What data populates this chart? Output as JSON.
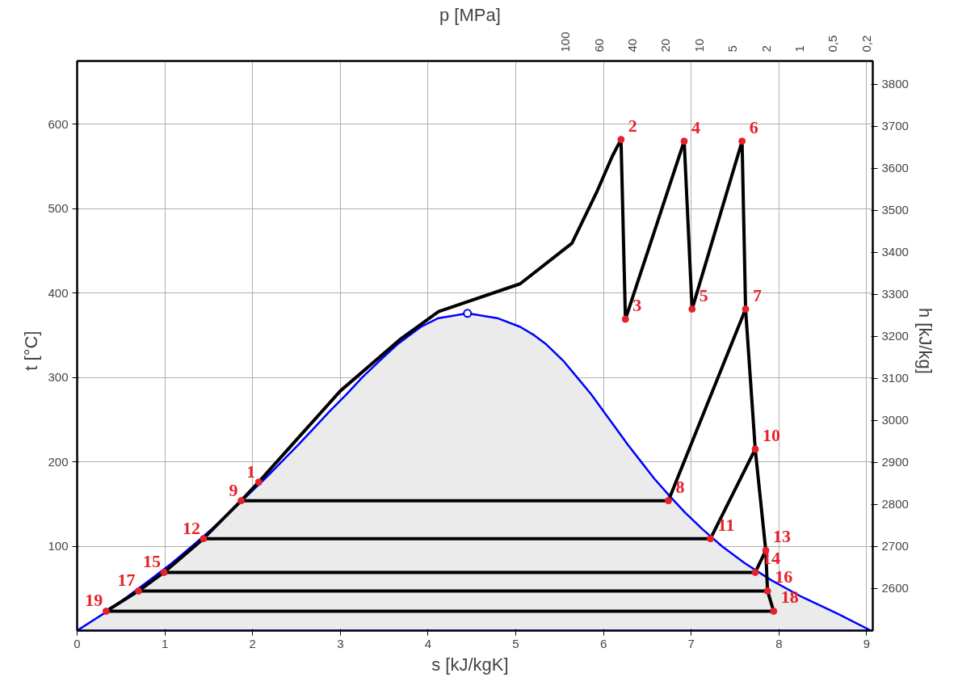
{
  "chart_data": {
    "type": "line",
    "xlabel": "s   [kJ/kgK]",
    "ylabel": "t   [°C]",
    "y2label": "h   [kJ/kg]",
    "x2label": "p   [MPa]",
    "xlim": [
      0,
      9.07
    ],
    "xticks": [
      0,
      1,
      2,
      3,
      4,
      5,
      6,
      7,
      8,
      9
    ],
    "ylim": [
      0,
      675
    ],
    "yticks": [
      100,
      200,
      300,
      400,
      500,
      600
    ],
    "y2lim": [
      2500,
      3855
    ],
    "y2ticks": [
      2600,
      2700,
      2800,
      2900,
      3000,
      3100,
      3200,
      3300,
      3400,
      3500,
      3600,
      3700,
      3800
    ],
    "grid": true,
    "line_style": "solid",
    "series": [
      {
        "type": "area",
        "color": "#0000ff",
        "x": [
          0,
          0.3,
          0.57,
          0.83,
          1.08,
          1.31,
          1.53,
          1.74,
          1.94,
          2.14,
          2.33,
          2.52,
          2.7,
          2.88,
          3.07,
          3.25,
          3.45,
          3.66,
          3.92,
          4.11,
          4.45,
          4.8,
          5.05,
          5.21,
          5.34,
          5.54,
          5.7,
          5.86,
          6.0,
          6.14,
          6.28,
          6.43,
          6.58,
          6.75,
          6.93,
          7.13,
          7.35,
          7.61,
          7.91,
          8.26,
          8.67,
          9.05
        ],
        "values": [
          0,
          20,
          40,
          60,
          80,
          100,
          120,
          140,
          160,
          180,
          200,
          220,
          240,
          260,
          280,
          300,
          320,
          340,
          360,
          370,
          376,
          370,
          360,
          350,
          340,
          320,
          300,
          280,
          260,
          240,
          220,
          200,
          180,
          160,
          140,
          120,
          100,
          80,
          60,
          40,
          20,
          0
        ]
      },
      {
        "color": "#000000",
        "x": [
          0.33,
          0.7,
          0.99,
          1.44,
          1.87,
          2.07,
          2.5,
          3.0,
          3.68,
          4.12,
          5.05,
          5.64,
          5.92,
          6.1,
          6.2
        ],
        "values": [
          23,
          47,
          69,
          109,
          154,
          176,
          226,
          284,
          345,
          378,
          411,
          459,
          519,
          562,
          582
        ]
      },
      {
        "color": "#000000",
        "x": [
          6.2,
          6.25
        ],
        "values": [
          582,
          369
        ]
      },
      {
        "color": "#000000",
        "x": [
          6.25,
          6.92
        ],
        "values": [
          369,
          580
        ]
      },
      {
        "color": "#000000",
        "x": [
          6.92,
          7.01
        ],
        "values": [
          580,
          381
        ]
      },
      {
        "color": "#000000",
        "x": [
          7.01,
          7.58
        ],
        "values": [
          381,
          580
        ]
      },
      {
        "color": "#000000",
        "x": [
          7.58,
          7.62,
          7.73,
          7.85,
          7.87,
          7.94
        ],
        "values": [
          580,
          381,
          215,
          95,
          47,
          23
        ]
      },
      {
        "color": "#000000",
        "x": [
          0.33,
          7.94
        ],
        "values": [
          23,
          23
        ]
      },
      {
        "color": "#000000",
        "x": [
          1.87,
          6.74,
          7.62
        ],
        "values": [
          154,
          154,
          381
        ]
      },
      {
        "color": "#000000",
        "x": [
          1.44,
          7.22,
          7.73
        ],
        "values": [
          109,
          109,
          215
        ]
      },
      {
        "color": "#000000",
        "x": [
          0.99,
          7.73,
          7.85
        ],
        "values": [
          69,
          69,
          95
        ]
      },
      {
        "color": "#000000",
        "x": [
          0.7,
          7.87
        ],
        "values": [
          47,
          47
        ]
      },
      {
        "type": "scatter",
        "color": "#e8202a",
        "marker": "circle",
        "x": [
          2.07,
          6.2,
          6.25,
          6.92,
          7.01,
          7.58,
          7.62,
          6.74,
          1.87,
          7.73,
          7.22,
          1.44,
          7.85,
          7.73,
          0.99,
          7.87,
          0.7,
          7.94,
          0.33
        ],
        "values": [
          176,
          582,
          369,
          580,
          381,
          580,
          381,
          154,
          154,
          215,
          109,
          109,
          95,
          69,
          69,
          47,
          47,
          23,
          23
        ]
      },
      {
        "type": "scatter",
        "color": "#0000ff",
        "marker": "circle",
        "x": [
          4.45
        ],
        "values": [
          376
        ]
      }
    ],
    "annotations": [
      {
        "text": "1",
        "x": 2.07,
        "y": 176
      },
      {
        "text": "2",
        "x": 6.2,
        "y": 582
      },
      {
        "text": "3",
        "x": 6.25,
        "y": 369
      },
      {
        "text": "4",
        "x": 6.92,
        "y": 580
      },
      {
        "text": "5",
        "x": 7.01,
        "y": 381
      },
      {
        "text": "6",
        "x": 7.58,
        "y": 580
      },
      {
        "text": "7",
        "x": 7.62,
        "y": 381
      },
      {
        "text": "8",
        "x": 6.74,
        "y": 154
      },
      {
        "text": "9",
        "x": 1.87,
        "y": 154
      },
      {
        "text": "10",
        "x": 7.73,
        "y": 215
      },
      {
        "text": "11",
        "x": 7.22,
        "y": 109
      },
      {
        "text": "12",
        "x": 1.44,
        "y": 109
      },
      {
        "text": "13",
        "x": 7.85,
        "y": 95
      },
      {
        "text": "14",
        "x": 7.73,
        "y": 69
      },
      {
        "text": "15",
        "x": 0.99,
        "y": 69
      },
      {
        "text": "16",
        "x": 7.87,
        "y": 47
      },
      {
        "text": "17",
        "x": 0.7,
        "y": 47
      },
      {
        "text": "18",
        "x": 7.94,
        "y": 23
      },
      {
        "text": "19",
        "x": 0.33,
        "y": 23
      },
      "100",
      "60",
      "40",
      "20",
      "10",
      "5",
      "2",
      "1",
      "0,5",
      "0,2"
    ]
  }
}
